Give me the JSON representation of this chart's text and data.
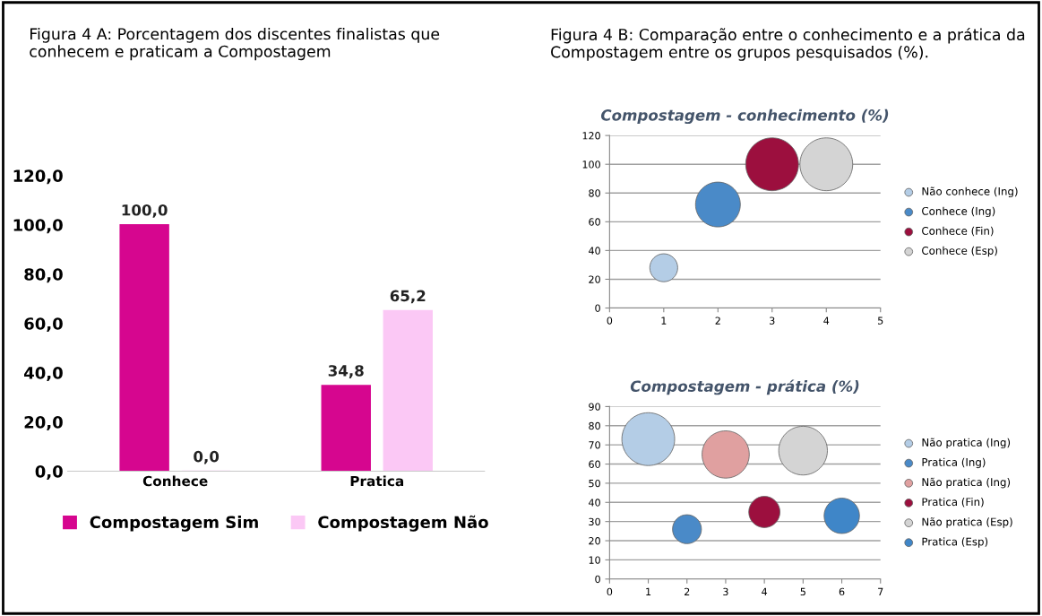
{
  "chart_data": [
    {
      "type": "bar",
      "title": "Figura 4 A: Porcentagem dos discentes finalistas que conhecem e praticam a Compostagem",
      "categories": [
        "Conhece",
        "Pratica"
      ],
      "series": [
        {
          "name": "Compostagem Sim",
          "color": "#d6068f",
          "values": [
            100.0,
            34.8
          ],
          "value_labels": [
            "100,0",
            "34,8"
          ]
        },
        {
          "name": "Compostagem Não",
          "color": "#fbc8f5",
          "values": [
            0.0,
            65.2
          ],
          "value_labels": [
            "0,0",
            "65,2"
          ]
        }
      ],
      "ylim": [
        0,
        120
      ],
      "yticks": [
        {
          "value": 0,
          "label": "0,0"
        },
        {
          "value": 20,
          "label": "20,0"
        },
        {
          "value": 40,
          "label": "40,0"
        },
        {
          "value": 60,
          "label": "60,0"
        },
        {
          "value": 80,
          "label": "80,0"
        },
        {
          "value": 100,
          "label": "100,0"
        },
        {
          "value": 120,
          "label": "120,0"
        }
      ],
      "grid": false,
      "legend": "bottom"
    },
    {
      "type": "bubble",
      "title": "Compostagem - conhecimento (%)",
      "annotations": [
        "Figura 4 B: Comparação entre o conhecimento e a prática da Compostagem entre os grupos pesquisados (%)."
      ],
      "series": [
        {
          "name": "Não conhece (Ing)",
          "color": "#b4cde6",
          "x": [
            1
          ],
          "values": [
            28
          ],
          "sizes": [
            0.28
          ]
        },
        {
          "name": "Conhece (Ing)",
          "color": "#4a8ac8",
          "x": [
            2
          ],
          "values": [
            72
          ],
          "sizes": [
            0.72
          ]
        },
        {
          "name": "Conhece (Fin)",
          "color": "#9c0f3e",
          "x": [
            3
          ],
          "values": [
            100
          ],
          "sizes": [
            1
          ]
        },
        {
          "name": "Conhece (Esp)",
          "color": "#d4d4d4",
          "x": [
            4
          ],
          "values": [
            100
          ],
          "sizes": [
            1
          ]
        }
      ],
      "xlim": [
        0,
        5
      ],
      "xticks": [
        0,
        1,
        2,
        3,
        4,
        5
      ],
      "ylim": [
        0,
        120
      ],
      "yticks": [
        0,
        20,
        40,
        60,
        80,
        100,
        120
      ],
      "grid": "y",
      "legend": "right"
    },
    {
      "type": "bubble",
      "title": "Compostagem - prática (%)",
      "series": [
        {
          "name": "Não pratica (Ing)",
          "color": "#b4cde6",
          "x": [
            1
          ],
          "values": [
            73
          ],
          "sizes": [
            1
          ]
        },
        {
          "name": "Pratica (Ing)",
          "color": "#4a8ac8",
          "x": [
            2
          ],
          "values": [
            26
          ],
          "sizes": [
            0.3
          ]
        },
        {
          "name": "Não pratica (Ing)",
          "color": "#e0a0a0",
          "x": [
            3
          ],
          "values": [
            65
          ],
          "sizes": [
            0.8
          ]
        },
        {
          "name": "Pratica (Fin)",
          "color": "#9c0f3e",
          "x": [
            4
          ],
          "values": [
            35
          ],
          "sizes": [
            0.35
          ]
        },
        {
          "name": "Não pratica (Esp)",
          "color": "#d4d4d4",
          "x": [
            5
          ],
          "values": [
            67
          ],
          "sizes": [
            0.85
          ]
        },
        {
          "name": "Pratica (Esp)",
          "color": "#3f86c8",
          "x": [
            6
          ],
          "values": [
            33
          ],
          "sizes": [
            0.45
          ]
        }
      ],
      "xlim": [
        0,
        7
      ],
      "xticks": [
        0,
        1,
        2,
        3,
        4,
        5,
        6,
        7
      ],
      "ylim": [
        0,
        90
      ],
      "yticks": [
        0,
        10,
        20,
        30,
        40,
        50,
        60,
        70,
        80,
        90
      ],
      "grid": "y",
      "legend": "right"
    }
  ]
}
